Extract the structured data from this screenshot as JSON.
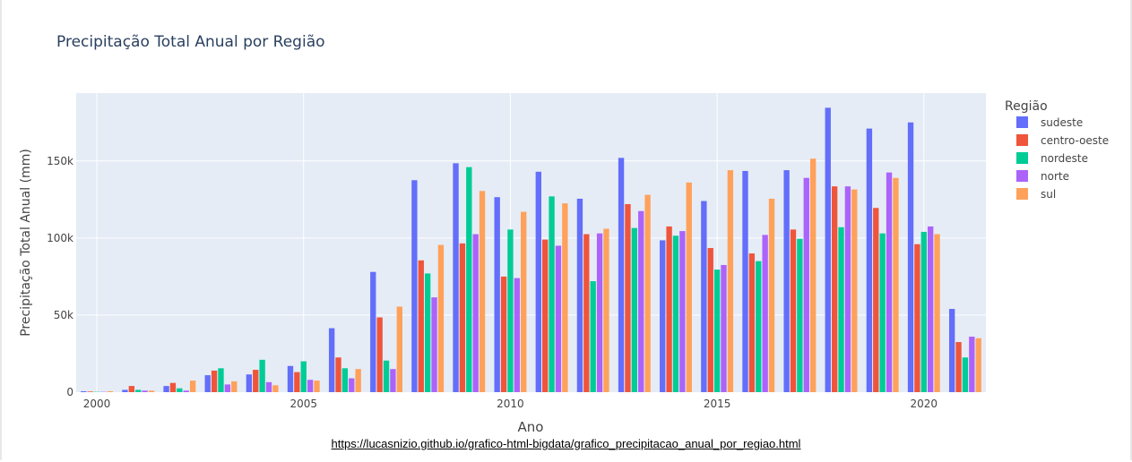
{
  "page": {
    "source_link": "https://lucasnizio.github.io/grafico-html-bigdata/grafico_precipitacao_anual_por_regiao.html"
  },
  "colors": {
    "sudeste": "#636efa",
    "centro-oeste": "#ef553b",
    "nordeste": "#00cc96",
    "norte": "#ab63fa",
    "sul": "#ffa15a",
    "plot_bg": "#e5ecf6",
    "text": "#444444",
    "title": "#2a3f5f"
  },
  "chart_data": {
    "type": "bar",
    "title": "Precipitação Total Anual por Região",
    "xlabel": "Ano",
    "ylabel": "Precipitação Total Anual (mm)",
    "legend_title": "Região",
    "legend_position": "right",
    "grid": true,
    "xlim": [
      1999.5,
      2021.5
    ],
    "ylim": [
      0,
      194000
    ],
    "x_ticks": [
      2000,
      2005,
      2010,
      2015,
      2020
    ],
    "x_tick_labels": [
      "2000",
      "2005",
      "2010",
      "2015",
      "2020"
    ],
    "y_ticks": [
      0,
      50000,
      100000,
      150000
    ],
    "y_tick_labels": [
      "0",
      "50k",
      "100k",
      "150k"
    ],
    "x": [
      2000,
      2001,
      2002,
      2003,
      2004,
      2005,
      2006,
      2007,
      2008,
      2009,
      2010,
      2011,
      2012,
      2013,
      2014,
      2015,
      2016,
      2017,
      2018,
      2019,
      2020,
      2021
    ],
    "series": [
      {
        "name": "sudeste",
        "values": [
          600,
          1500,
          4000,
          11000,
          11500,
          17000,
          41500,
          78000,
          137500,
          148500,
          126500,
          143000,
          125500,
          152000,
          98500,
          124000,
          143500,
          144000,
          184500,
          171000,
          175000,
          54000
        ]
      },
      {
        "name": "centro-oeste",
        "values": [
          400,
          4000,
          6000,
          14000,
          14500,
          13000,
          22500,
          48500,
          85500,
          96500,
          75000,
          99000,
          102500,
          122000,
          107500,
          93500,
          90000,
          105500,
          133500,
          119500,
          96000,
          32500
        ]
      },
      {
        "name": "nordeste",
        "values": [
          200,
          1500,
          2500,
          15500,
          21000,
          20000,
          15500,
          20500,
          77000,
          146000,
          105500,
          127000,
          72000,
          106500,
          101500,
          79500,
          85000,
          99500,
          107000,
          103000,
          104000,
          22500
        ]
      },
      {
        "name": "norte",
        "values": [
          200,
          1000,
          1000,
          5000,
          6500,
          8000,
          9000,
          15000,
          61500,
          102500,
          74000,
          95000,
          103000,
          117500,
          104500,
          82500,
          102000,
          139000,
          133500,
          142500,
          107500,
          36000
        ]
      },
      {
        "name": "sul",
        "values": [
          600,
          1000,
          7500,
          7000,
          4500,
          7500,
          15000,
          55500,
          95500,
          130500,
          117000,
          122500,
          106000,
          128000,
          136000,
          144000,
          125500,
          151500,
          131500,
          139000,
          102500,
          35000
        ]
      }
    ]
  }
}
